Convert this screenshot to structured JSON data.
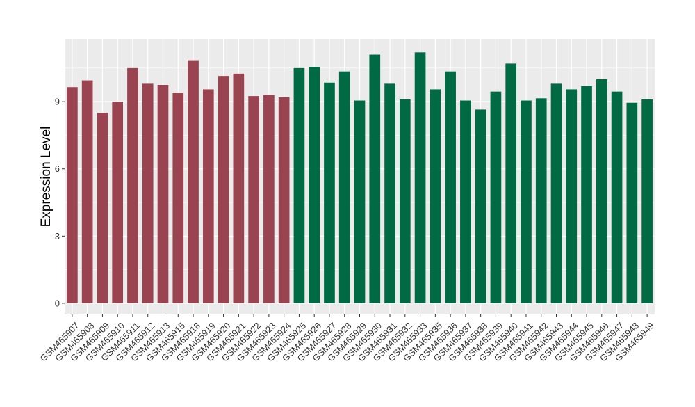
{
  "chart_data": {
    "type": "bar",
    "title": "",
    "xlabel": "",
    "ylabel": "Expression Level",
    "ylim": [
      -0.5,
      11.8
    ],
    "yticks": [
      0,
      3,
      6,
      9
    ],
    "grid": true,
    "colors": {
      "group1": "#9a4451",
      "group2": "#006a45",
      "panel": "#ebebeb",
      "grid": "#ffffff"
    },
    "categories": [
      "GSM465907",
      "GSM465908",
      "GSM465909",
      "GSM465910",
      "GSM465911",
      "GSM465912",
      "GSM465913",
      "GSM465915",
      "GSM465918",
      "GSM465919",
      "GSM465920",
      "GSM465921",
      "GSM465922",
      "GSM465923",
      "GSM465924",
      "GSM465925",
      "GSM465926",
      "GSM465927",
      "GSM465928",
      "GSM465929",
      "GSM465930",
      "GSM465931",
      "GSM465932",
      "GSM465933",
      "GSM465935",
      "GSM465936",
      "GSM465937",
      "GSM465938",
      "GSM465939",
      "GSM465940",
      "GSM465941",
      "GSM465942",
      "GSM465943",
      "GSM465944",
      "GSM465945",
      "GSM465946",
      "GSM465947",
      "GSM465948",
      "GSM465949"
    ],
    "values": [
      9.65,
      9.95,
      8.5,
      9.0,
      10.5,
      9.8,
      9.75,
      9.4,
      10.85,
      9.55,
      10.15,
      10.25,
      9.25,
      9.3,
      9.2,
      10.5,
      10.55,
      9.85,
      10.35,
      9.05,
      11.1,
      9.8,
      9.1,
      11.2,
      9.55,
      10.35,
      9.05,
      8.65,
      9.45,
      10.7,
      9.05,
      9.15,
      9.8,
      9.55,
      9.7,
      10.0,
      9.45,
      8.95,
      9.1
    ],
    "groups": [
      1,
      1,
      1,
      1,
      1,
      1,
      1,
      1,
      1,
      1,
      1,
      1,
      1,
      1,
      1,
      2,
      2,
      2,
      2,
      2,
      2,
      2,
      2,
      2,
      2,
      2,
      2,
      2,
      2,
      2,
      2,
      2,
      2,
      2,
      2,
      2,
      2,
      2,
      2
    ]
  }
}
